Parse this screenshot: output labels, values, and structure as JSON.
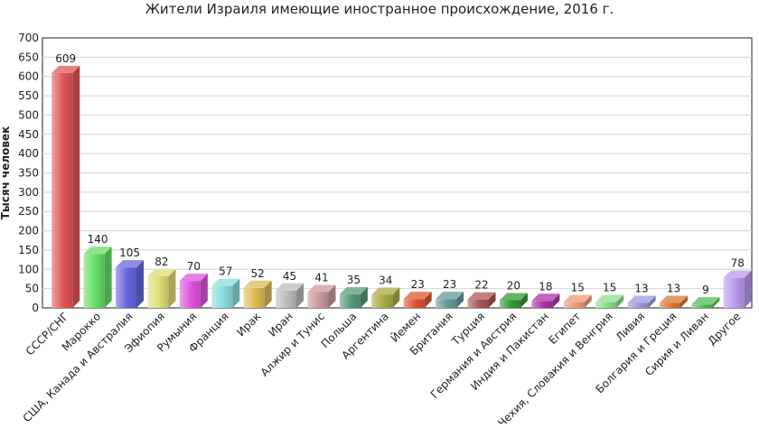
{
  "chart_data": {
    "type": "bar",
    "title": "Жители Израиля имеющие иностранное происхождение, 2016 г.",
    "xlabel": "",
    "ylabel": "Тысяч человек",
    "ylim": [
      0,
      700
    ],
    "yticks": [
      0,
      50,
      100,
      150,
      200,
      250,
      300,
      350,
      400,
      450,
      500,
      550,
      600,
      650,
      700
    ],
    "grid": true,
    "categories": [
      "СССР/СНГ",
      "Марокко",
      "США, Канада и Австралия",
      "Эфиопия",
      "Румыния",
      "Франция",
      "Ирак",
      "Иран",
      "Алжир и Тунис",
      "Польша",
      "Аргентина",
      "Йемен",
      "Британия",
      "Турция",
      "Германия и Австрия",
      "Индия и Пакистан",
      "Египет",
      "Чехия, Словакия и Венгрия",
      "Ливия",
      "Болгария и Греция",
      "Сирия и Ливан",
      "Другое"
    ],
    "values": [
      609,
      140,
      105,
      82,
      70,
      57,
      52,
      45,
      41,
      35,
      34,
      23,
      23,
      22,
      20,
      18,
      15,
      15,
      13,
      13,
      9,
      78
    ],
    "colors": [
      "#e25555",
      "#66dd66",
      "#6666dd",
      "#dddd77",
      "#dd55dd",
      "#88dddd",
      "#ddbb55",
      "#bbbbbb",
      "#cc9999",
      "#559977",
      "#aaaa44",
      "#dd5533",
      "#669999",
      "#aa5555",
      "#339933",
      "#aa33aa",
      "#ee9977",
      "#88dd88",
      "#9999dd",
      "#dd7733",
      "#55bb55",
      "#bb99ee"
    ]
  }
}
